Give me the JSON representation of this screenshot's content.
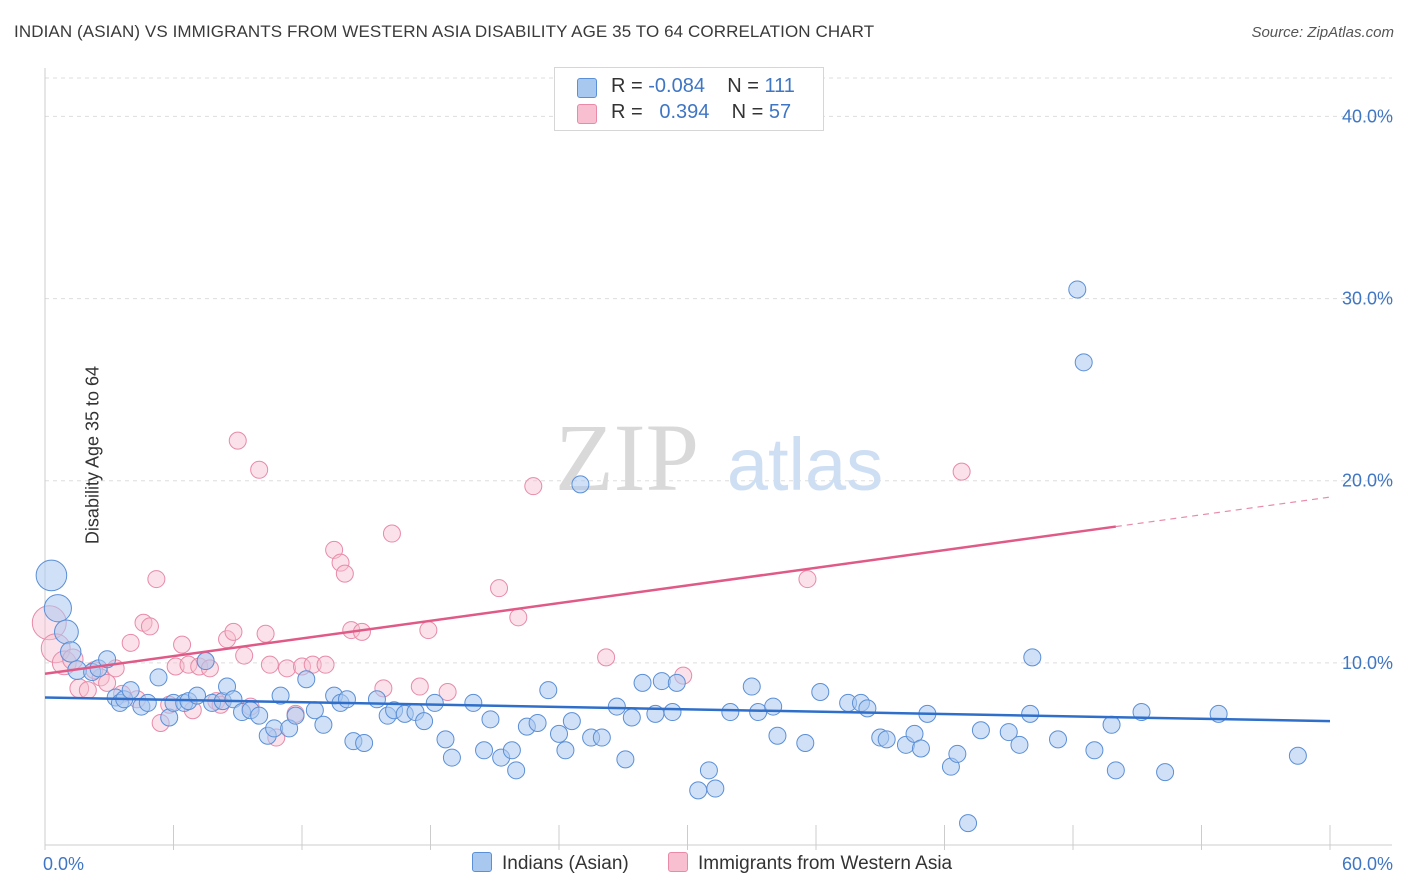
{
  "title": "INDIAN (ASIAN) VS IMMIGRANTS FROM WESTERN ASIA DISABILITY AGE 35 TO 64 CORRELATION CHART",
  "source": "Source: ZipAtlas.com",
  "watermark": {
    "zip": "ZIP",
    "atlas": "atlas"
  },
  "colors": {
    "blue_fill": "#a9c8f0",
    "blue_stroke": "#5b8fd6",
    "blue_line": "#2f6fca",
    "pink_fill": "#f7bfd0",
    "pink_stroke": "#e88aa8",
    "pink_line": "#e05a88",
    "grid": "#dddddd",
    "axis_text": "#3f76c4"
  },
  "legend": {
    "rows": [
      {
        "r_label": "R = ",
        "r_value": "-0.084",
        "n_label": "N = ",
        "n_value": "111"
      },
      {
        "r_label": "R = ",
        "r_value": "0.394",
        "n_label": "N = ",
        "n_value": "57"
      }
    ]
  },
  "bottom_legend": {
    "series1": "Indians (Asian)",
    "series2": "Immigrants from Western Asia"
  },
  "chart_data": {
    "type": "scatter",
    "title": "INDIAN (ASIAN) VS IMMIGRANTS FROM WESTERN ASIA DISABILITY AGE 35 TO 64 CORRELATION CHART",
    "xlabel": "",
    "ylabel": "Disability Age 35 to 64",
    "xlim": [
      0,
      60
    ],
    "ylim": [
      0,
      42
    ],
    "x_tick_labels": [
      "0.0%",
      "60.0%"
    ],
    "y_ticks": [
      10,
      20,
      30,
      40
    ],
    "y_tick_labels": [
      "10.0%",
      "20.0%",
      "30.0%",
      "40.0%"
    ],
    "grid": true,
    "series": [
      {
        "name": "Indians (Asian)",
        "r": -0.084,
        "n": 111,
        "trend": {
          "x0": 0,
          "y0": 8.1,
          "x1": 60,
          "y1": 6.8
        },
        "points": [
          [
            0.3,
            14.8,
            1.8
          ],
          [
            0.6,
            13.0,
            1.6
          ],
          [
            1.0,
            11.7,
            1.4
          ],
          [
            1.2,
            10.6,
            1.2
          ],
          [
            1.5,
            9.6,
            1.1
          ],
          [
            2.2,
            9.5,
            1
          ],
          [
            2.5,
            9.7,
            1
          ],
          [
            2.9,
            10.2,
            1
          ],
          [
            3.3,
            8.1,
            1
          ],
          [
            3.5,
            7.8,
            1
          ],
          [
            3.7,
            8.0,
            1
          ],
          [
            4.0,
            8.5,
            1
          ],
          [
            4.5,
            7.6,
            1
          ],
          [
            4.8,
            7.8,
            1
          ],
          [
            5.3,
            9.2,
            1
          ],
          [
            5.8,
            7.0,
            1
          ],
          [
            6.0,
            7.8,
            1
          ],
          [
            6.5,
            7.8,
            1
          ],
          [
            6.7,
            7.9,
            1
          ],
          [
            7.1,
            8.2,
            1
          ],
          [
            7.5,
            10.1,
            1
          ],
          [
            7.8,
            7.8,
            1
          ],
          [
            8.3,
            7.9,
            1
          ],
          [
            8.5,
            8.7,
            1
          ],
          [
            8.8,
            8.0,
            1
          ],
          [
            9.2,
            7.3,
            1
          ],
          [
            9.6,
            7.4,
            1
          ],
          [
            10.0,
            7.1,
            1
          ],
          [
            10.4,
            6.0,
            1
          ],
          [
            10.7,
            6.4,
            1
          ],
          [
            11.0,
            8.2,
            1
          ],
          [
            11.4,
            6.4,
            1
          ],
          [
            11.7,
            7.1,
            1
          ],
          [
            12.2,
            9.1,
            1
          ],
          [
            12.6,
            7.4,
            1
          ],
          [
            13.0,
            6.6,
            1
          ],
          [
            13.5,
            8.2,
            1
          ],
          [
            13.8,
            7.8,
            1
          ],
          [
            14.1,
            8.0,
            1
          ],
          [
            14.4,
            5.7,
            1
          ],
          [
            14.9,
            5.6,
            1
          ],
          [
            15.5,
            8.0,
            1
          ],
          [
            16.0,
            7.1,
            1
          ],
          [
            16.3,
            7.4,
            1
          ],
          [
            16.8,
            7.2,
            1
          ],
          [
            17.3,
            7.3,
            1
          ],
          [
            17.7,
            6.8,
            1
          ],
          [
            18.2,
            7.8,
            1
          ],
          [
            18.7,
            5.8,
            1
          ],
          [
            19.0,
            4.8,
            1
          ],
          [
            20.0,
            7.8,
            1
          ],
          [
            20.5,
            5.2,
            1
          ],
          [
            20.8,
            6.9,
            1
          ],
          [
            21.3,
            4.8,
            1
          ],
          [
            21.8,
            5.2,
            1
          ],
          [
            22.0,
            4.1,
            1
          ],
          [
            22.5,
            6.5,
            1
          ],
          [
            23.0,
            6.7,
            1
          ],
          [
            23.5,
            8.5,
            1
          ],
          [
            24.0,
            6.1,
            1
          ],
          [
            24.3,
            5.2,
            1
          ],
          [
            24.6,
            6.8,
            1
          ],
          [
            25.0,
            19.8,
            1
          ],
          [
            25.5,
            5.9,
            1
          ],
          [
            26.0,
            5.9,
            1
          ],
          [
            26.7,
            7.6,
            1
          ],
          [
            27.1,
            4.7,
            1
          ],
          [
            27.4,
            7.0,
            1
          ],
          [
            27.9,
            8.9,
            1
          ],
          [
            28.5,
            7.2,
            1
          ],
          [
            28.8,
            9.0,
            1
          ],
          [
            29.3,
            7.3,
            1
          ],
          [
            29.5,
            8.9,
            1
          ],
          [
            30.5,
            3.0,
            1
          ],
          [
            31.0,
            4.1,
            1
          ],
          [
            31.3,
            3.1,
            1
          ],
          [
            32.0,
            7.3,
            1
          ],
          [
            33.0,
            8.7,
            1
          ],
          [
            33.3,
            7.3,
            1
          ],
          [
            34.0,
            7.6,
            1
          ],
          [
            34.2,
            6.0,
            1
          ],
          [
            35.5,
            5.6,
            1
          ],
          [
            36.2,
            8.4,
            1
          ],
          [
            37.5,
            7.8,
            1
          ],
          [
            38.1,
            7.8,
            1
          ],
          [
            38.4,
            7.5,
            1
          ],
          [
            39.0,
            5.9,
            1
          ],
          [
            39.3,
            5.8,
            1
          ],
          [
            40.2,
            5.5,
            1
          ],
          [
            40.6,
            6.1,
            1
          ],
          [
            40.9,
            5.3,
            1
          ],
          [
            41.2,
            7.2,
            1
          ],
          [
            42.3,
            4.3,
            1
          ],
          [
            42.6,
            5.0,
            1
          ],
          [
            43.1,
            1.2,
            1
          ],
          [
            43.7,
            6.3,
            1
          ],
          [
            45.0,
            6.2,
            1
          ],
          [
            45.5,
            5.5,
            1
          ],
          [
            46.0,
            7.2,
            1
          ],
          [
            46.1,
            10.3,
            1
          ],
          [
            47.3,
            5.8,
            1
          ],
          [
            48.2,
            30.5,
            1
          ],
          [
            48.5,
            26.5,
            1
          ],
          [
            49.0,
            5.2,
            1
          ],
          [
            49.8,
            6.6,
            1
          ],
          [
            50.0,
            4.1,
            1
          ],
          [
            51.2,
            7.3,
            1
          ],
          [
            52.3,
            4.0,
            1
          ],
          [
            54.8,
            7.2,
            1
          ],
          [
            58.5,
            4.9,
            1
          ]
        ]
      },
      {
        "name": "Immigrants from Western Asia",
        "r": 0.394,
        "n": 57,
        "trend": {
          "x0": 0,
          "y0": 9.4,
          "x1": 60,
          "y1": 19.1,
          "solid_until_x": 50
        },
        "points": [
          [
            0.2,
            12.2,
            2.0
          ],
          [
            0.5,
            10.8,
            1.7
          ],
          [
            0.9,
            10.0,
            1.4
          ],
          [
            1.3,
            10.2,
            1.2
          ],
          [
            1.6,
            8.6,
            1.1
          ],
          [
            2.0,
            8.5,
            1
          ],
          [
            2.3,
            9.6,
            1
          ],
          [
            2.6,
            9.2,
            1
          ],
          [
            2.9,
            8.9,
            1
          ],
          [
            3.3,
            9.7,
            1
          ],
          [
            3.6,
            8.3,
            1
          ],
          [
            4.0,
            11.1,
            1
          ],
          [
            4.3,
            8.0,
            1
          ],
          [
            4.6,
            12.2,
            1
          ],
          [
            4.9,
            12.0,
            1
          ],
          [
            5.2,
            14.6,
            1
          ],
          [
            5.4,
            6.7,
            1
          ],
          [
            5.8,
            7.7,
            1
          ],
          [
            6.1,
            9.8,
            1
          ],
          [
            6.4,
            11.0,
            1
          ],
          [
            6.7,
            9.9,
            1
          ],
          [
            6.9,
            7.4,
            1
          ],
          [
            7.2,
            9.8,
            1
          ],
          [
            7.5,
            10.1,
            1
          ],
          [
            7.7,
            9.7,
            1
          ],
          [
            8.0,
            7.9,
            1
          ],
          [
            8.2,
            7.7,
            1
          ],
          [
            8.5,
            11.3,
            1
          ],
          [
            8.8,
            11.7,
            1
          ],
          [
            9.0,
            22.2,
            1
          ],
          [
            9.3,
            10.4,
            1
          ],
          [
            9.6,
            7.6,
            1
          ],
          [
            10.0,
            20.6,
            1
          ],
          [
            10.3,
            11.6,
            1
          ],
          [
            10.5,
            9.9,
            1
          ],
          [
            10.8,
            5.9,
            1
          ],
          [
            11.3,
            9.7,
            1
          ],
          [
            11.7,
            7.2,
            1
          ],
          [
            12.0,
            9.8,
            1
          ],
          [
            12.5,
            9.9,
            1
          ],
          [
            13.1,
            9.9,
            1
          ],
          [
            13.5,
            16.2,
            1
          ],
          [
            13.8,
            15.5,
            1
          ],
          [
            14.0,
            14.9,
            1
          ],
          [
            14.3,
            11.8,
            1
          ],
          [
            14.8,
            11.7,
            1
          ],
          [
            15.8,
            8.6,
            1
          ],
          [
            16.2,
            17.1,
            1
          ],
          [
            17.5,
            8.7,
            1
          ],
          [
            17.9,
            11.8,
            1
          ],
          [
            18.8,
            8.4,
            1
          ],
          [
            21.2,
            14.1,
            1
          ],
          [
            22.1,
            12.5,
            1
          ],
          [
            22.8,
            19.7,
            1
          ],
          [
            26.2,
            10.3,
            1
          ],
          [
            29.8,
            9.3,
            1
          ],
          [
            35.6,
            14.6,
            1
          ],
          [
            42.8,
            20.5,
            1
          ]
        ]
      }
    ]
  }
}
